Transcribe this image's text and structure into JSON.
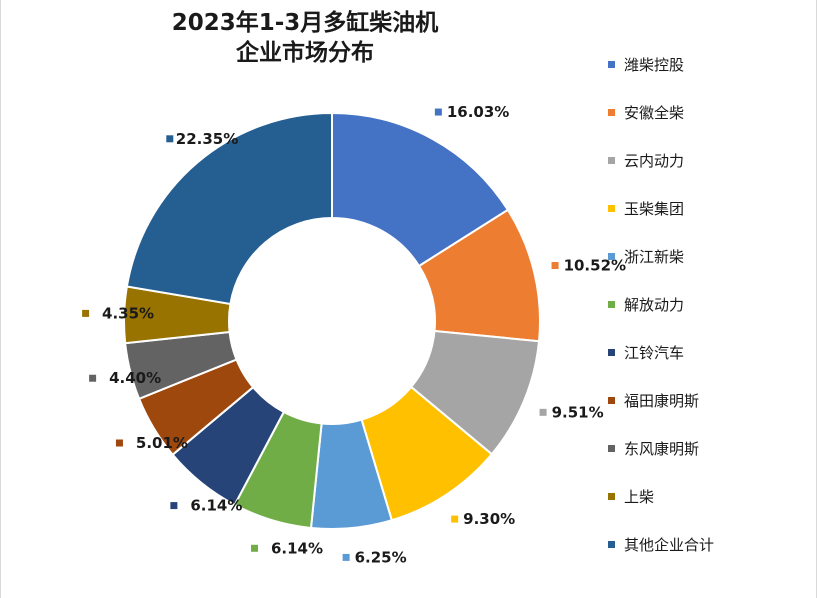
{
  "title": {
    "line1": "2023年1-3月多缸柴油机",
    "line2": "企业市场分布"
  },
  "chart_data": {
    "type": "pie",
    "donut": true,
    "legend_position": "right",
    "title": "2023年1-3月多缸柴油机企业市场分布",
    "categories": [
      "潍柴控股",
      "安徽全柴",
      "云内动力",
      "玉柴集团",
      "浙江新柴",
      "解放动力",
      "江铃汽车",
      "福田康明斯",
      "东风康明斯",
      "上柴",
      "其他企业合计"
    ],
    "values": [
      16.03,
      10.52,
      9.51,
      9.3,
      6.25,
      6.14,
      6.14,
      5.01,
      4.4,
      4.35,
      22.35
    ],
    "value_labels": [
      "16.03%",
      "10.52%",
      "9.51%",
      "9.30%",
      "6.25%",
      "6.14%",
      "6.14%",
      "5.01%",
      "4.40%",
      "4.35%",
      "22.35%"
    ],
    "colors": [
      "#4472C4",
      "#ED7D31",
      "#A5A5A5",
      "#FFC000",
      "#5B9BD5",
      "#70AD47",
      "#264478",
      "#9E480E",
      "#636363",
      "#997300",
      "#255E91"
    ]
  }
}
